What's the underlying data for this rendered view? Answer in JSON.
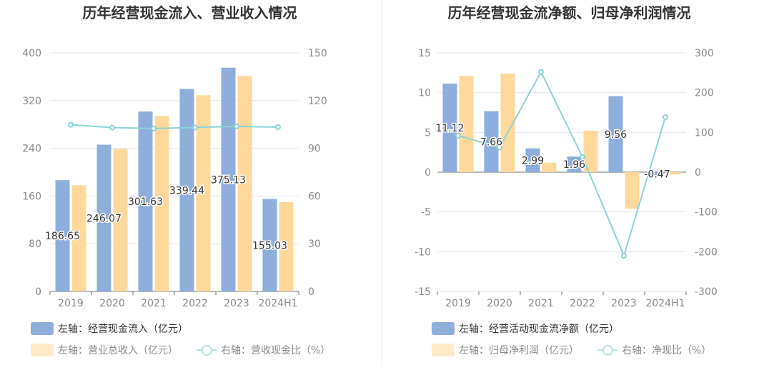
{
  "colors": {
    "blue": "#8eaedc",
    "orange": "#ffd99b",
    "line": "#8bd3d6",
    "grid": "#e3e6ee",
    "axis_text": "#8a8a8a"
  },
  "chart_data": [
    {
      "type": "bar",
      "title": "历年经营现金流入、营业收入情况",
      "categories": [
        "2019",
        "2020",
        "2021",
        "2022",
        "2023",
        "2024H1"
      ],
      "ylim_left": [
        0,
        400
      ],
      "yticks_left": [
        "0",
        "80",
        "160",
        "240",
        "320",
        "400"
      ],
      "ylim_right": [
        0,
        150
      ],
      "yticks_right": [
        "0",
        "30",
        "60",
        "90",
        "120",
        "150"
      ],
      "series": [
        {
          "name": "左轴：经营现金流入（亿元）",
          "axis": "left",
          "kind": "bar",
          "values": [
            186.65,
            246.07,
            301.63,
            339.44,
            375.13,
            155.03
          ],
          "labels": [
            "186.65",
            "246.07",
            "301.63",
            "339.44",
            "375.13",
            "155.03"
          ]
        },
        {
          "name": "左轴：营业总收入（亿元）",
          "axis": "left",
          "kind": "bar",
          "values": [
            178,
            239,
            294,
            329,
            361,
            150
          ]
        },
        {
          "name": "右轴：营收现金比（%）",
          "axis": "right",
          "kind": "line",
          "values": [
            104.8,
            103.0,
            102.4,
            103.1,
            103.8,
            103.3
          ]
        }
      ]
    },
    {
      "type": "bar",
      "title": "历年经营现金流净额、归母净利润情况",
      "categories": [
        "2019",
        "2020",
        "2021",
        "2022",
        "2023",
        "2024H1"
      ],
      "ylim_left": [
        -15,
        15
      ],
      "yticks_left": [
        "-15",
        "-10",
        "-5",
        "0",
        "5",
        "10",
        "15"
      ],
      "ylim_right": [
        -300,
        300
      ],
      "yticks_right": [
        "-300",
        "-200",
        "-100",
        "0",
        "100",
        "200",
        "300"
      ],
      "series": [
        {
          "name": "左轴：经营活动现金流净额（亿元）",
          "axis": "left",
          "kind": "bar",
          "values": [
            11.12,
            7.66,
            2.99,
            1.96,
            9.56,
            -0.47
          ],
          "labels": [
            "11.12",
            "7.66",
            "2.99",
            "1.96",
            "9.56",
            "-0.47"
          ]
        },
        {
          "name": "左轴：归母净利润（亿元）",
          "axis": "left",
          "kind": "bar",
          "values": [
            12.1,
            12.4,
            1.2,
            5.2,
            -4.6,
            -0.3
          ]
        },
        {
          "name": "右轴：净现比（%）",
          "axis": "right",
          "kind": "line",
          "values": [
            92,
            62,
            252,
            38,
            -210,
            138
          ]
        }
      ]
    }
  ]
}
